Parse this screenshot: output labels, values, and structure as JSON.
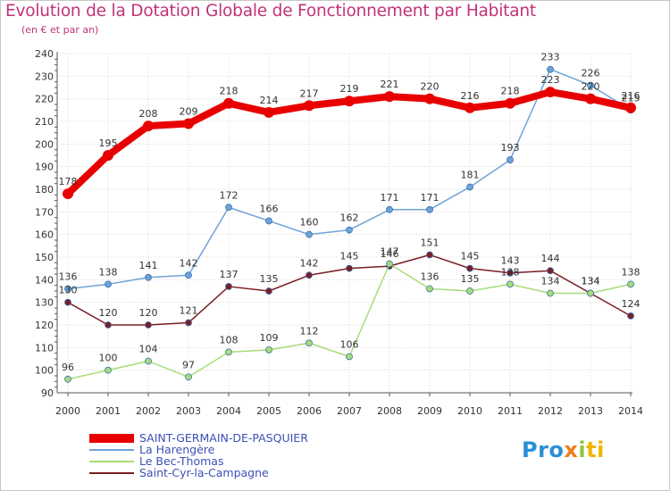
{
  "title": "Evolution de la Dotation Globale de Fonctionnement par Habitant",
  "subtitle": "(en € et par an)",
  "logo": {
    "p1": "Pro",
    "x": "x",
    "i": "i",
    "ti": "ti"
  },
  "colors": {
    "grid": "#d8d8d8",
    "axis": "#555555",
    "tick_label": "#333333",
    "point_label": "#333333"
  },
  "chart_data": {
    "type": "line",
    "x": [
      "2000",
      "2001",
      "2002",
      "2003",
      "2004",
      "2005",
      "2006",
      "2007",
      "2008",
      "2009",
      "2010",
      "2011",
      "2012",
      "2013",
      "2014"
    ],
    "ylim": [
      90,
      240
    ],
    "yticks": [
      90,
      100,
      110,
      120,
      130,
      140,
      150,
      160,
      170,
      180,
      190,
      200,
      210,
      220,
      230,
      240
    ],
    "grid": true,
    "legend_position": "bottom-left",
    "series": [
      {
        "name": "SAINT-GERMAIN-DE-PASQUIER",
        "color": "#e80000",
        "values": [
          178,
          195,
          208,
          209,
          218,
          214,
          217,
          219,
          221,
          220,
          216,
          218,
          223,
          220,
          216
        ],
        "labels": [
          "178",
          "195",
          "208",
          "209",
          "218",
          "214",
          "217",
          "219",
          "221",
          "220",
          "216",
          "218",
          "223",
          "220",
          "216"
        ]
      },
      {
        "name": "La Harengère",
        "color": "#6fa3d8",
        "values": [
          136,
          138,
          141,
          142,
          172,
          166,
          160,
          162,
          171,
          171,
          181,
          193,
          233,
          226,
          215
        ],
        "labels": [
          "136",
          "138",
          "141",
          "142",
          "172",
          "166",
          "160",
          "162",
          "171",
          "171",
          "181",
          "193",
          "233",
          "226",
          "215"
        ]
      },
      {
        "name": "Le Bec-Thomas",
        "color": "#a8dc78",
        "values": [
          96,
          100,
          104,
          97,
          108,
          109,
          112,
          106,
          147,
          136,
          135,
          138,
          134,
          134,
          138
        ],
        "labels": [
          "96",
          "100",
          "104",
          "97",
          "108",
          "109",
          "112",
          "106",
          "147",
          "136",
          "135",
          "138",
          "134",
          "134",
          "138"
        ]
      },
      {
        "name": "Saint-Cyr-la-Campagne",
        "color": "#7a1e24",
        "values": [
          130,
          120,
          120,
          121,
          137,
          135,
          142,
          145,
          146,
          151,
          145,
          143,
          144,
          134,
          124
        ],
        "labels": [
          "130",
          "120",
          "120",
          "121",
          "137",
          "135",
          "142",
          "145",
          "146",
          "151",
          "145",
          "143",
          "144",
          "134",
          "124"
        ]
      }
    ]
  }
}
